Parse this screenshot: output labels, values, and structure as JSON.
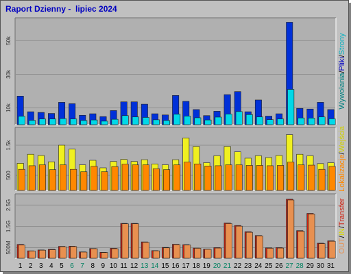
{
  "title": "Raport Dzienny -  lipiec 2024",
  "colors": {
    "frame": "#c0c0c0",
    "panel": "#b0b0b0",
    "hits": "#0030d8",
    "files": "#00d8e8",
    "pages": "#1060ff",
    "visits": "#f0f020",
    "sites": "#ff8800",
    "kbytes": "#d02010",
    "kbytes_out": "#e89050",
    "weekday_label": "#000000",
    "weekend_label": "#008060",
    "title": "#0000c0"
  },
  "legends": {
    "top": [
      {
        "text": "Wywołania",
        "color": "#008080"
      },
      {
        "text": "/",
        "color": "#000000"
      },
      {
        "text": "Pliki",
        "color": "#0000c0"
      },
      {
        "text": "/",
        "color": "#000000"
      },
      {
        "text": "Strony",
        "color": "#00b0c0"
      }
    ],
    "middle": [
      {
        "text": "Lokalizacje",
        "color": "#ff8800"
      },
      {
        "text": "/",
        "color": "#000000"
      },
      {
        "text": "Wejścia",
        "color": "#d0d000"
      }
    ],
    "bottom": [
      {
        "text": "OUT",
        "color": "#e89050"
      },
      {
        "text": "/",
        "color": "#000000"
      },
      {
        "text": "IN",
        "color": "#d8d800"
      },
      {
        "text": "/",
        "color": "#000000"
      },
      {
        "text": "Transfer",
        "color": "#d02010"
      }
    ]
  },
  "chart_data": [
    {
      "type": "bar",
      "panel": "top",
      "categories": [
        "1",
        "2",
        "3",
        "4",
        "5",
        "6",
        "7",
        "8",
        "9",
        "10",
        "11",
        "12",
        "13",
        "14",
        "15",
        "16",
        "17",
        "18",
        "19",
        "20",
        "21",
        "22",
        "23",
        "24",
        "25",
        "26",
        "27",
        "28",
        "29",
        "30",
        "31"
      ],
      "weekend_days": [
        "6",
        "7",
        "13",
        "14",
        "20",
        "21",
        "27",
        "28"
      ],
      "yticks": [
        "10k",
        "30k",
        "50k"
      ],
      "ylim": [
        0,
        62000
      ],
      "series": [
        {
          "name": "Pliki",
          "values": [
            17000,
            7700,
            7300,
            6700,
            13300,
            12500,
            5600,
            6500,
            4800,
            8400,
            13600,
            13600,
            12200,
            6500,
            5800,
            17400,
            13900,
            9000,
            5400,
            8000,
            17900,
            19700,
            7700,
            14700,
            5100,
            6500,
            61000,
            9700,
            9300,
            13300,
            9000
          ]
        },
        {
          "name": "Strony",
          "values": [
            5000,
            2600,
            3400,
            3400,
            3600,
            3400,
            2500,
            2800,
            2100,
            3200,
            5400,
            4600,
            4300,
            2900,
            2500,
            6200,
            5100,
            4100,
            2800,
            4500,
            6300,
            7800,
            6000,
            4600,
            3000,
            3400,
            21000,
            4000,
            3900,
            4600,
            3500
          ]
        }
      ]
    },
    {
      "type": "bar",
      "panel": "middle",
      "categories": [
        "1",
        "2",
        "3",
        "4",
        "5",
        "6",
        "7",
        "8",
        "9",
        "10",
        "11",
        "12",
        "13",
        "14",
        "15",
        "16",
        "17",
        "18",
        "19",
        "20",
        "21",
        "22",
        "23",
        "24",
        "25",
        "26",
        "27",
        "28",
        "29",
        "30",
        "31"
      ],
      "yticks": [
        "500",
        "1.5k"
      ],
      "ylim": [
        0,
        2000
      ],
      "series": [
        {
          "name": "Wejścia",
          "values": [
            900,
            1200,
            1160,
            950,
            1500,
            1370,
            850,
            1000,
            750,
            960,
            1030,
            960,
            1020,
            880,
            850,
            1020,
            1740,
            1460,
            920,
            1150,
            1460,
            1280,
            1070,
            1150,
            1090,
            1160,
            1850,
            1200,
            1150,
            890,
            920
          ]
        },
        {
          "name": "Lokalizacje",
          "values": [
            700,
            820,
            850,
            690,
            850,
            700,
            620,
            800,
            620,
            790,
            870,
            850,
            850,
            720,
            690,
            850,
            940,
            880,
            810,
            820,
            850,
            850,
            830,
            830,
            820,
            830,
            940,
            850,
            840,
            700,
            800
          ]
        }
      ]
    },
    {
      "type": "bar",
      "panel": "bottom",
      "categories": [
        "1",
        "2",
        "3",
        "4",
        "5",
        "6",
        "7",
        "8",
        "9",
        "10",
        "11",
        "12",
        "13",
        "14",
        "15",
        "16",
        "17",
        "18",
        "19",
        "20",
        "21",
        "22",
        "23",
        "24",
        "25",
        "26",
        "27",
        "28",
        "29",
        "30",
        "31"
      ],
      "yticks": [
        "500M",
        "1.5G",
        "2.5G"
      ],
      "ylim": [
        0,
        2900000000
      ],
      "series": [
        {
          "name": "Transfer",
          "values": [
            650000000,
            350000000,
            390000000,
            420000000,
            560000000,
            570000000,
            300000000,
            460000000,
            280000000,
            470000000,
            1640000000,
            1640000000,
            770000000,
            360000000,
            510000000,
            660000000,
            640000000,
            480000000,
            430000000,
            500000000,
            1660000000,
            1540000000,
            1250000000,
            1070000000,
            490000000,
            500000000,
            2780000000,
            1300000000,
            2110000000,
            710000000,
            820000000
          ]
        },
        {
          "name": "OUT",
          "values": [
            620000000,
            340000000,
            380000000,
            400000000,
            540000000,
            550000000,
            290000000,
            450000000,
            270000000,
            450000000,
            1620000000,
            1620000000,
            750000000,
            350000000,
            490000000,
            640000000,
            620000000,
            470000000,
            420000000,
            480000000,
            1630000000,
            1510000000,
            1220000000,
            1050000000,
            470000000,
            480000000,
            2740000000,
            1270000000,
            2080000000,
            690000000,
            800000000
          ]
        }
      ]
    }
  ]
}
